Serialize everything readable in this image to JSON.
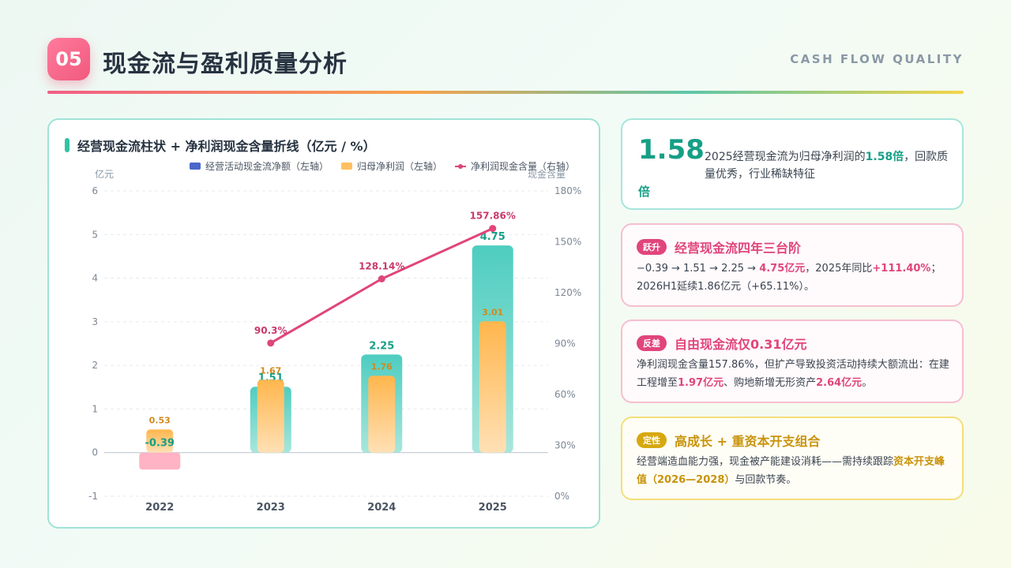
{
  "header": {
    "badge": "05",
    "title": "现金流与盈利质量分析",
    "subtitle": "CASH FLOW QUALITY"
  },
  "chart_panel": {
    "title": "经营现金流柱状 + 净利润现金含量折线（亿元 / %）",
    "legend": [
      "经营活动现金流净额（左轴）",
      "归母净利润（左轴）",
      "净利润现金含量（右轴）"
    ]
  },
  "chart_data": {
    "type": "bar",
    "categories": [
      "2022",
      "2023",
      "2024",
      "2025"
    ],
    "series": [
      {
        "name": "经营活动现金流净额（左轴）",
        "type": "bar",
        "axis": "left",
        "values": [
          -0.39,
          1.51,
          2.25,
          4.75
        ],
        "labels": [
          "-0.39",
          "1.51",
          "2.25",
          "4.75"
        ]
      },
      {
        "name": "归母净利润（左轴）",
        "type": "bar",
        "axis": "left",
        "values": [
          0.53,
          1.67,
          1.76,
          3.01
        ],
        "labels": [
          "0.53",
          "1.67",
          "1.76",
          "3.01"
        ]
      },
      {
        "name": "净利润现金含量（右轴）",
        "type": "line",
        "axis": "right",
        "values": [
          null,
          90.3,
          128.14,
          157.86
        ],
        "labels": [
          "",
          "90.3%",
          "128.14%",
          "157.86%"
        ]
      }
    ],
    "yleft": {
      "label": "亿元",
      "ticks": [
        "-1",
        "0",
        "1",
        "2",
        "3",
        "4",
        "5",
        "6"
      ],
      "range": [
        -1,
        6
      ]
    },
    "yright": {
      "label": "现金含量",
      "ticks": [
        "0%",
        "30%",
        "60%",
        "90%",
        "120%",
        "150%",
        "180%"
      ],
      "range": [
        0,
        180
      ]
    },
    "grid": true,
    "legend_position": "top-right"
  },
  "highlight_card": {
    "value": "1.58",
    "unit": "倍",
    "text_before": "2025经营现金流为归母净利润的",
    "text_hl": "1.58倍",
    "text_after": "，回款质量优秀，行业稀缺特征"
  },
  "card_leap": {
    "tag": "跃升",
    "title": "经营现金流四年三台阶",
    "text1": "−0.39 → 1.51 → 2.25 → ",
    "hl1": "4.75亿元",
    "text2": "，2025年同比",
    "hl2": "+111.40%",
    "text3": "；2026H1延续1.86亿元（+65.11%）。"
  },
  "card_contrast": {
    "tag": "反差",
    "title": "自由现金流仅0.31亿元",
    "text1": "净利润现金含量157.86%，但扩产导致投资活动持续大额流出：在建工程增至",
    "hl1": "1.97亿元",
    "text2": "、购地新增无形资产",
    "hl2": "2.64亿元",
    "text3": "。"
  },
  "card_verdict": {
    "tag": "定性",
    "title": "高成长 + 重资本开支组合",
    "text1": "经营端造血能力强，现金被产能建设消耗——需持续跟踪",
    "hl1": "资本开支峰值（2026—2028）",
    "text2": "与回款节奏。"
  },
  "colors": {
    "teal": "#169f86",
    "pink": "#e0457b",
    "gold": "#c8930a",
    "bar_cf": "#4ecdc0",
    "bar_profit": "#ffb64d"
  }
}
